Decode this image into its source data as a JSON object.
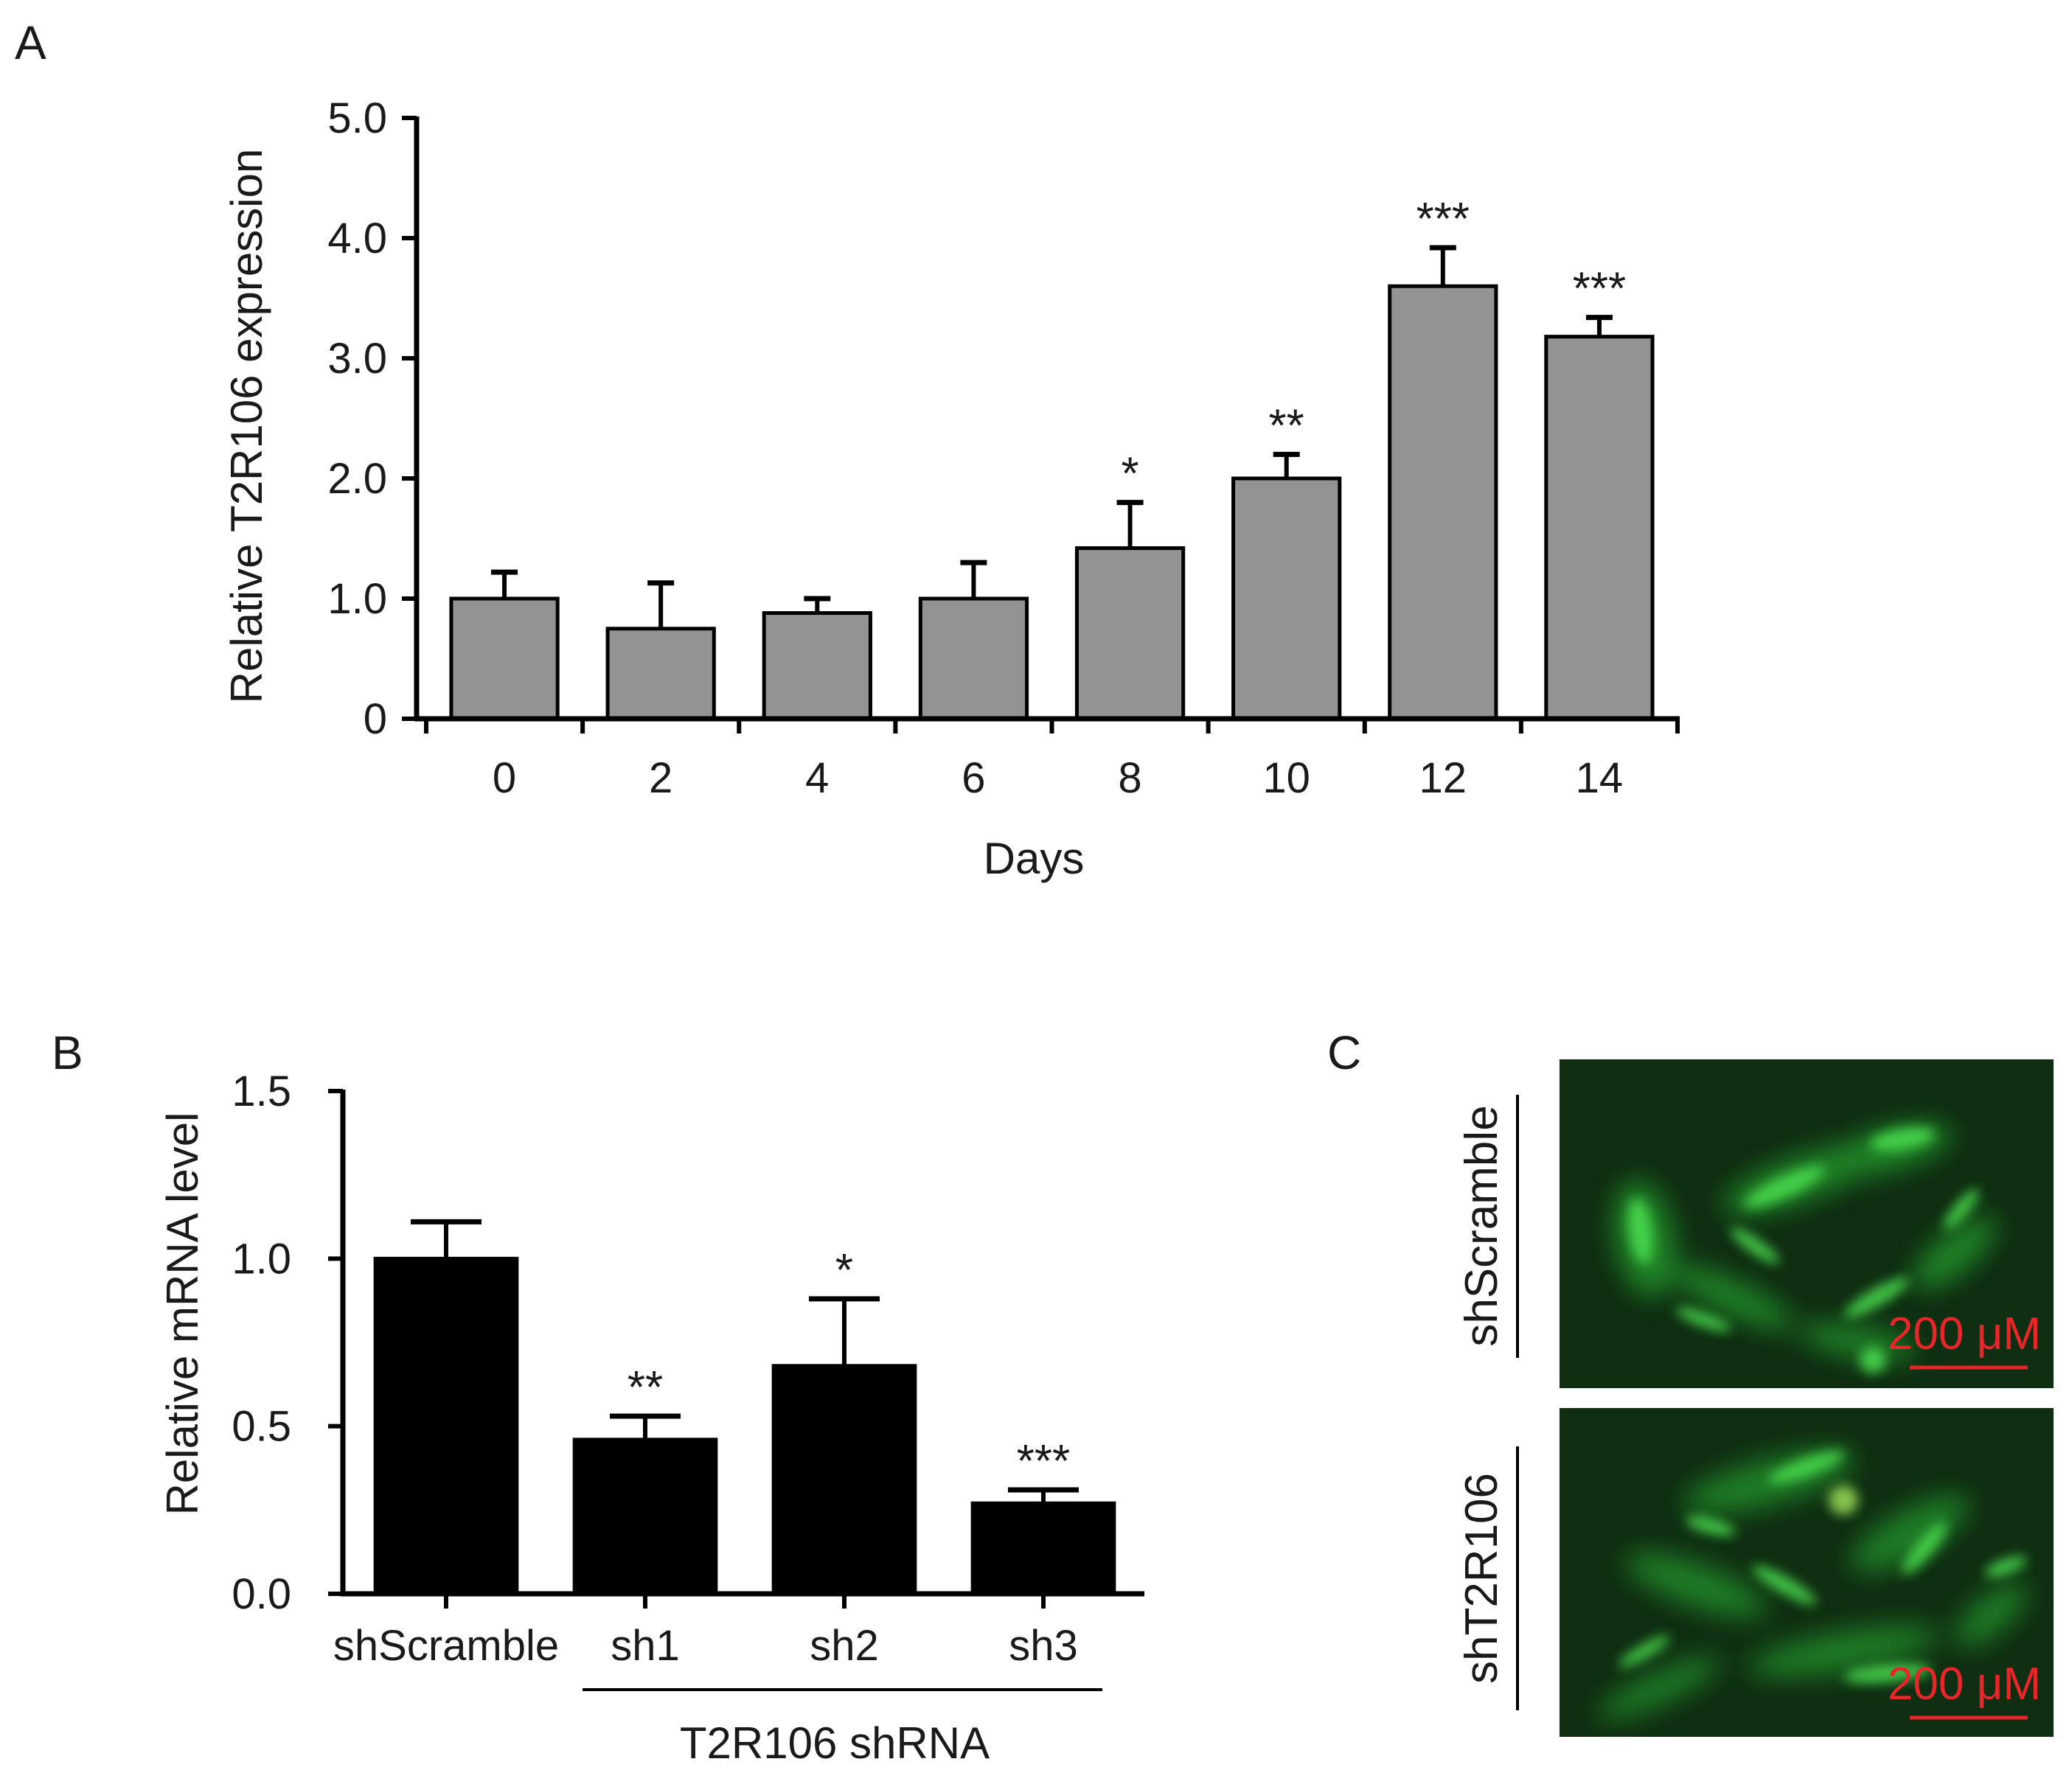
{
  "panel_labels": {
    "A": "A",
    "B": "B",
    "C": "C"
  },
  "chart_data": [
    {
      "id": "A",
      "type": "bar",
      "categories": [
        "0",
        "2",
        "4",
        "6",
        "8",
        "10",
        "12",
        "14"
      ],
      "values": [
        1.0,
        0.75,
        0.88,
        1.0,
        1.42,
        2.0,
        3.6,
        3.18
      ],
      "errors": [
        0.22,
        0.38,
        0.12,
        0.3,
        0.38,
        0.2,
        0.32,
        0.16
      ],
      "significance": [
        "",
        "",
        "",
        "",
        "*",
        "**",
        "***",
        "***"
      ],
      "bar_color": "#939393",
      "xlabel": "Days",
      "ylabel": "Relative T2R106 expression",
      "ylim": [
        0,
        5.0
      ],
      "yticks": [
        0,
        1.0,
        2.0,
        3.0,
        4.0,
        5.0
      ],
      "ytick_labels": [
        "0",
        "1.0",
        "2.0",
        "3.0",
        "4.0",
        "5.0"
      ],
      "grid": false
    },
    {
      "id": "B",
      "type": "bar",
      "categories": [
        "shScramble",
        "sh1",
        "sh2",
        "sh3"
      ],
      "values": [
        1.0,
        0.46,
        0.68,
        0.27
      ],
      "errors": [
        0.11,
        0.07,
        0.2,
        0.04
      ],
      "significance": [
        "",
        "**",
        "*",
        "***"
      ],
      "bar_color": "#000000",
      "group_label": "T2R106 shRNA",
      "ylabel": "Relative mRNA level",
      "ylim": [
        0,
        1.5
      ],
      "yticks": [
        0.0,
        0.5,
        1.0,
        1.5
      ],
      "ytick_labels": [
        "0.0",
        "0.5",
        "1.0",
        "1.5"
      ],
      "grid": false
    }
  ],
  "micrographs": {
    "images": [
      {
        "label": "shScramble",
        "scale_bar": "200 μM"
      },
      {
        "label": "shT2R106",
        "scale_bar": "200 μM"
      }
    ],
    "background_color": "#0f2e12",
    "cell_color": "#2fcf3a",
    "scale_color": "#e8262a"
  }
}
